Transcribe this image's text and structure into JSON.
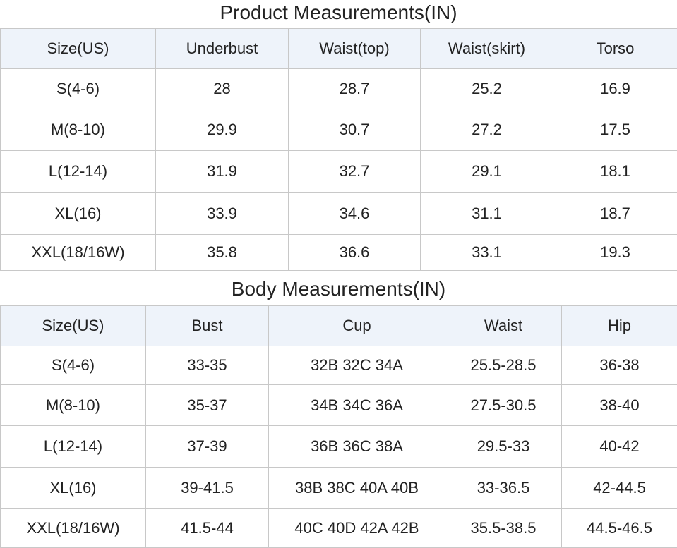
{
  "product": {
    "title": "Product Measurements(IN)",
    "header": [
      "Size(US)",
      "Underbust",
      "Waist(top)",
      "Waist(skirt)",
      "Torso"
    ],
    "rows": [
      [
        "S(4-6)",
        28,
        28.7,
        25.2,
        16.9
      ],
      [
        "M(8-10)",
        29.9,
        30.7,
        27.2,
        17.5
      ],
      [
        "L(12-14)",
        31.9,
        32.7,
        29.1,
        18.1
      ],
      [
        "XL(16)",
        33.9,
        34.6,
        31.1,
        18.7
      ],
      [
        "XXL(18/16W)",
        35.8,
        36.6,
        33.1,
        19.3
      ]
    ]
  },
  "body": {
    "title": "Body Measurements(IN)",
    "header": [
      "Size(US)",
      "Bust",
      "Cup",
      "Waist",
      "Hip"
    ],
    "rows": [
      [
        "S(4-6)",
        "33-35",
        "32B 32C 34A",
        "25.5-28.5",
        "36-38"
      ],
      [
        "M(8-10)",
        "35-37",
        "34B 34C 36A",
        "27.5-30.5",
        "38-40"
      ],
      [
        "L(12-14)",
        "37-39",
        "36B 36C 38A",
        "29.5-33",
        "40-42"
      ],
      [
        "XL(16)",
        "39-41.5",
        "38B 38C 40A 40B",
        "33-36.5",
        "42-44.5"
      ],
      [
        "XXL(18/16W)",
        "41.5-44",
        "40C 40D 42A 42B",
        "35.5-38.5",
        "44.5-46.5"
      ]
    ]
  }
}
